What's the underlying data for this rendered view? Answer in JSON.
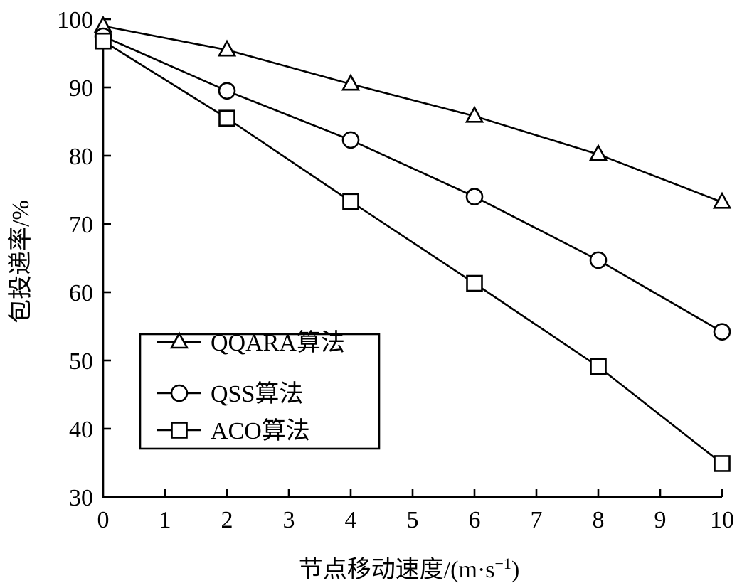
{
  "chart_data": {
    "type": "line",
    "xlabel": "节点移动速度/(m·s",
    "xlabel_sup": "−1",
    "xlabel_close": ")",
    "ylabel": "包投递率/%",
    "xlim": [
      0,
      10
    ],
    "ylim": [
      30,
      100
    ],
    "x_ticks": [
      "0",
      "1",
      "2",
      "3",
      "4",
      "5",
      "6",
      "7",
      "8",
      "9",
      "10"
    ],
    "y_ticks": [
      "30",
      "40",
      "50",
      "60",
      "70",
      "80",
      "90",
      "100"
    ],
    "grid": false,
    "legend_position": "bottom-left",
    "series": [
      {
        "name": "QQARA算法",
        "marker": "triangle",
        "x": [
          0,
          2,
          4,
          6,
          8,
          10
        ],
        "values": [
          99,
          95.5,
          90.5,
          85.8,
          80.2,
          73.2
        ]
      },
      {
        "name": "QSS算法",
        "marker": "circle",
        "x": [
          0,
          2,
          4,
          6,
          8,
          10
        ],
        "values": [
          97.5,
          89.5,
          82.3,
          74,
          64.7,
          54.2
        ]
      },
      {
        "name": "ACO算法",
        "marker": "square",
        "x": [
          0,
          2,
          4,
          6,
          8,
          10
        ],
        "values": [
          96.8,
          85.5,
          73.3,
          61.3,
          49.1,
          34.9
        ]
      }
    ]
  }
}
